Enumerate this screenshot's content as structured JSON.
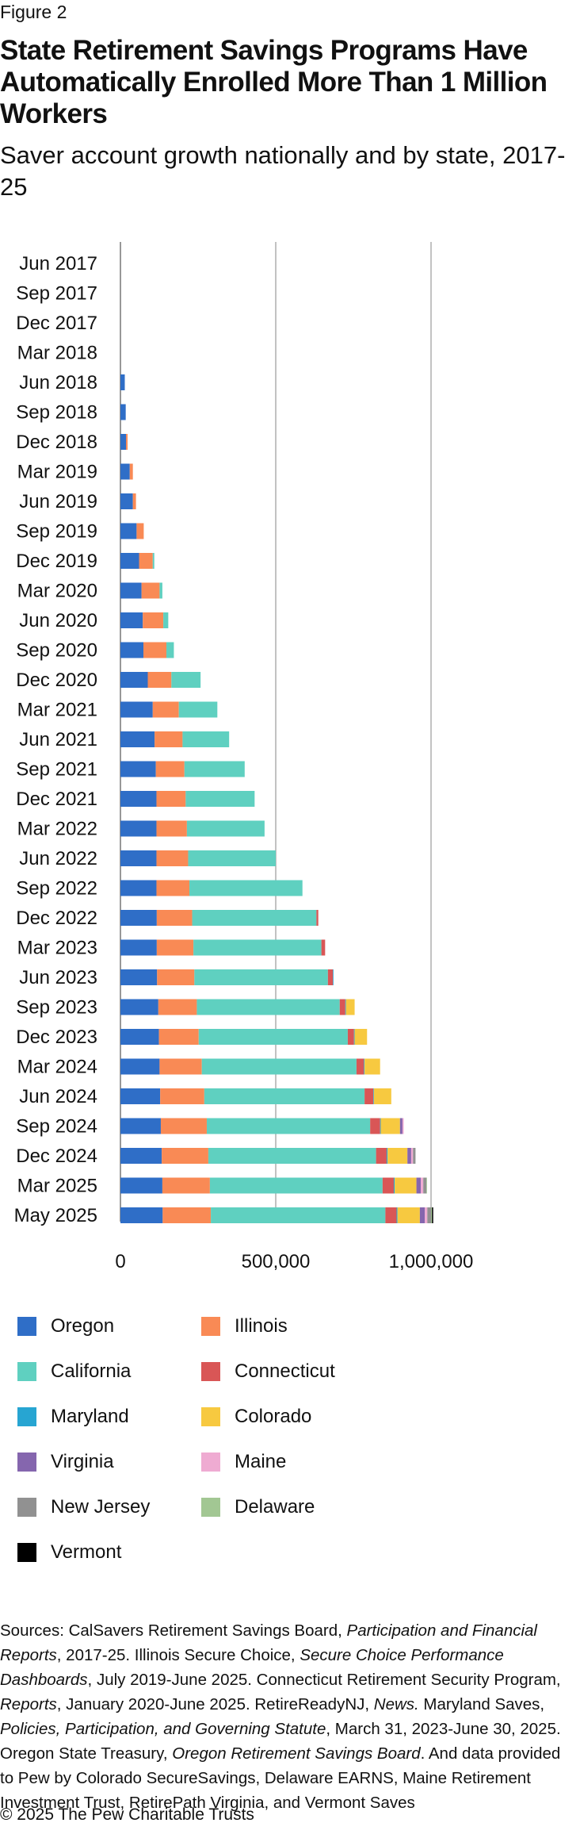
{
  "figure_label": "Figure 2",
  "title": "State Retirement Savings Programs Have Automatically Enrolled More Than 1 Million Workers",
  "subtitle": "Saver account growth nationally and by state, 2017-25",
  "chart_data": {
    "type": "bar",
    "orientation": "horizontal",
    "stacked": true,
    "categories": [
      "Jun 2017",
      "Sep 2017",
      "Dec 2017",
      "Mar 2018",
      "Jun 2018",
      "Sep 2018",
      "Dec 2018",
      "Mar 2019",
      "Jun 2019",
      "Sep 2019",
      "Dec 2019",
      "Mar 2020",
      "Jun 2020",
      "Sep 2020",
      "Dec 2020",
      "Mar 2021",
      "Jun 2021",
      "Sep 2021",
      "Dec 2021",
      "Mar 2022",
      "Jun 2022",
      "Sep 2022",
      "Dec 2022",
      "Mar 2023",
      "Jun 2023",
      "Sep 2023",
      "Dec 2023",
      "Mar 2024",
      "Jun 2024",
      "Sep 2024",
      "Dec 2024",
      "Mar 2025",
      "May 2025"
    ],
    "xlim": [
      0,
      1250000
    ],
    "xticks": [
      0,
      500000,
      1000000
    ],
    "xtick_labels": [
      "0",
      "500,000",
      "1,000,000"
    ],
    "grid": true,
    "legend_position": "bottom",
    "series": [
      {
        "name": "Oregon",
        "color": "#2f6ec7",
        "values": [
          0,
          0,
          0,
          0,
          14000,
          17000,
          18000,
          30000,
          40000,
          52000,
          60000,
          68000,
          72000,
          74000,
          88000,
          104000,
          110000,
          114000,
          116000,
          116000,
          116000,
          116000,
          117000,
          117000,
          118000,
          122000,
          124000,
          126000,
          128000,
          130000,
          133000,
          135000,
          136000
        ]
      },
      {
        "name": "Illinois",
        "color": "#f98a55",
        "values": [
          0,
          0,
          0,
          0,
          0,
          0,
          5000,
          10000,
          10000,
          23000,
          44000,
          58000,
          66000,
          74000,
          76000,
          84000,
          90000,
          92000,
          94000,
          98000,
          102000,
          106000,
          114000,
          118000,
          120000,
          124000,
          128000,
          136000,
          142000,
          148000,
          150000,
          153000,
          155000
        ]
      },
      {
        "name": "California",
        "color": "#5fd0c0",
        "values": [
          0,
          0,
          0,
          0,
          0,
          0,
          0,
          0,
          0,
          0,
          5000,
          9000,
          16000,
          24000,
          94000,
          124000,
          150000,
          194000,
          222000,
          250000,
          282000,
          364000,
          400000,
          412000,
          430000,
          460000,
          480000,
          498000,
          516000,
          526000,
          540000,
          556000,
          562000
        ]
      },
      {
        "name": "Connecticut",
        "color": "#d95656",
        "values": [
          0,
          0,
          0,
          0,
          0,
          0,
          0,
          0,
          0,
          0,
          0,
          0,
          0,
          0,
          0,
          0,
          0,
          0,
          0,
          0,
          0,
          0,
          6000,
          12000,
          16000,
          18000,
          20000,
          24000,
          28000,
          32000,
          34000,
          36000,
          36000
        ]
      },
      {
        "name": "Maryland",
        "color": "#27a5d2",
        "values": [
          0,
          0,
          0,
          0,
          0,
          0,
          0,
          0,
          0,
          0,
          0,
          0,
          0,
          0,
          0,
          0,
          0,
          0,
          0,
          0,
          0,
          0,
          0,
          0,
          2000,
          2000,
          2000,
          2000,
          2000,
          2000,
          3000,
          3000,
          3000
        ]
      },
      {
        "name": "Colorado",
        "color": "#f7c940",
        "values": [
          0,
          0,
          0,
          0,
          0,
          0,
          0,
          0,
          0,
          0,
          0,
          0,
          0,
          0,
          0,
          0,
          0,
          0,
          0,
          0,
          0,
          0,
          0,
          0,
          0,
          28000,
          40000,
          50000,
          56000,
          62000,
          64000,
          70000,
          72000
        ]
      },
      {
        "name": "Virginia",
        "color": "#8566ae",
        "values": [
          0,
          0,
          0,
          0,
          0,
          0,
          0,
          0,
          0,
          0,
          0,
          0,
          0,
          0,
          0,
          0,
          0,
          0,
          0,
          0,
          0,
          0,
          0,
          0,
          0,
          0,
          0,
          0,
          0,
          8000,
          12000,
          14000,
          16000
        ]
      },
      {
        "name": "Maine",
        "color": "#efabd2",
        "values": [
          0,
          0,
          0,
          0,
          0,
          0,
          0,
          0,
          0,
          0,
          0,
          0,
          0,
          0,
          0,
          0,
          0,
          0,
          0,
          0,
          0,
          0,
          0,
          0,
          0,
          0,
          0,
          0,
          0,
          4000,
          6000,
          8000,
          8000
        ]
      },
      {
        "name": "New Jersey",
        "color": "#919191",
        "values": [
          0,
          0,
          0,
          0,
          0,
          0,
          0,
          0,
          0,
          0,
          0,
          0,
          0,
          0,
          0,
          0,
          0,
          0,
          0,
          0,
          0,
          0,
          0,
          0,
          0,
          0,
          0,
          0,
          0,
          0,
          8000,
          10000,
          12000
        ]
      },
      {
        "name": "Delaware",
        "color": "#a2c793",
        "values": [
          0,
          0,
          0,
          0,
          0,
          0,
          0,
          0,
          0,
          0,
          0,
          0,
          0,
          0,
          0,
          0,
          0,
          0,
          0,
          0,
          0,
          0,
          0,
          0,
          0,
          0,
          0,
          0,
          0,
          0,
          0,
          2000,
          3000
        ]
      },
      {
        "name": "Vermont",
        "color": "#000000",
        "values": [
          0,
          0,
          0,
          0,
          0,
          0,
          0,
          0,
          0,
          0,
          0,
          0,
          0,
          0,
          0,
          0,
          0,
          0,
          0,
          0,
          0,
          0,
          0,
          0,
          0,
          0,
          0,
          0,
          0,
          0,
          0,
          0,
          4000
        ]
      }
    ]
  },
  "sources": {
    "prefix": "Sources: CalSavers Retirement Savings Board, ",
    "t1": "Participation and Financial Reports",
    "s1": ", 2017-25. Illinois Secure Choice, ",
    "t2": "Secure Choice Performance Dashboards",
    "s2": ", July 2019-June 2025. Connecticut Retirement Security Program, ",
    "t3": "Reports",
    "s3": ", January 2020-June 2025. RetireReadyNJ, ",
    "t4": "News.",
    "s4": " Maryland Saves, ",
    "t5": "Policies, Participation, and Governing Statute",
    "s5": ", March 31, 2023-June 30, 2025. Oregon State Treasury, ",
    "t6": "Oregon Retirement Savings Board",
    "s6": ". And data provided to Pew by Colorado SecureSavings, Delaware EARNS, Maine Retirement Investment Trust, RetirePath Virginia, and Vermont Saves"
  },
  "copyright": "© 2025 The Pew Charitable Trusts"
}
